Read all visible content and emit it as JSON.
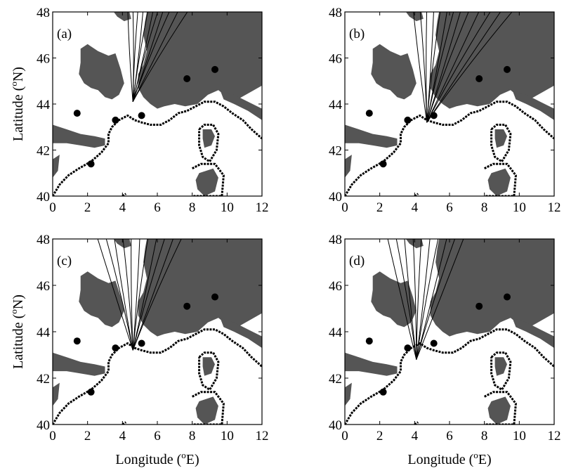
{
  "axes": {
    "x_label_text": "Longitude (",
    "x_label_unit": "E)",
    "y_label_text": "Latitude (",
    "y_label_unit": "N)",
    "degree_symbol": "o",
    "x_ticks": [
      "0",
      "2",
      "4",
      "6",
      "8",
      "10",
      "12"
    ],
    "y_ticks": [
      "40",
      "42",
      "44",
      "46",
      "48"
    ],
    "xlim": [
      0,
      12
    ],
    "ylim": [
      40,
      48
    ]
  },
  "panels": [
    {
      "label": "(a)",
      "origin": [
        4.6,
        44.1
      ],
      "trajectory_ends_lon": [
        4.3,
        4.6,
        4.9,
        5.2,
        5.5,
        5.8,
        6.1,
        6.4,
        6.8,
        7.3,
        7.9
      ]
    },
    {
      "label": "(b)",
      "origin": [
        4.7,
        43.2
      ],
      "trajectory_ends_lon": [
        3.9,
        4.3,
        4.7,
        5.1,
        5.5,
        5.9,
        6.3,
        6.7,
        7.2,
        7.8,
        8.5,
        9.1,
        9.8
      ]
    },
    {
      "label": "(c)",
      "origin": [
        4.6,
        43.2
      ],
      "trajectory_ends_lon": [
        2.5,
        3.0,
        3.5,
        4.0,
        4.5,
        5.0,
        5.5,
        6.0,
        6.5,
        7.0,
        7.5
      ]
    },
    {
      "label": "(d)",
      "origin": [
        4.1,
        42.8
      ],
      "trajectory_ends_lon": [
        2.4,
        2.9,
        3.4,
        3.9,
        4.4,
        4.9,
        5.4,
        5.9,
        6.4,
        6.9
      ]
    }
  ],
  "stations": [
    [
      1.4,
      43.6
    ],
    [
      2.2,
      41.4
    ],
    [
      3.6,
      43.3
    ],
    [
      5.1,
      43.5
    ],
    [
      7.7,
      45.1
    ],
    [
      9.3,
      45.5
    ]
  ],
  "colors": {
    "land": "#555555",
    "isobath": "#000000",
    "background": "#ffffff"
  }
}
